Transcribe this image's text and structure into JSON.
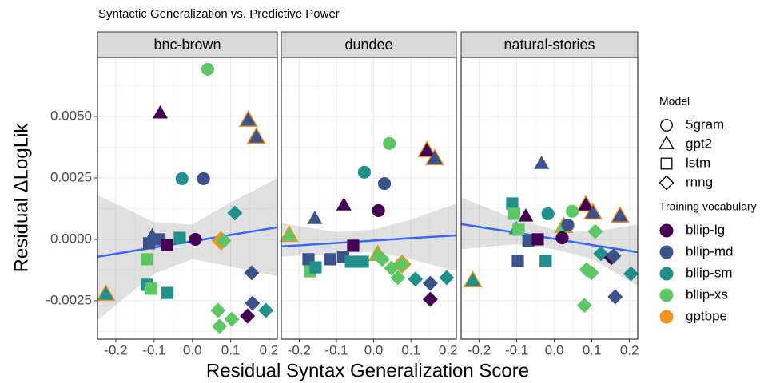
{
  "chart_data": {
    "type": "scatter",
    "title": "Syntactic Generalization vs. Predictive Power",
    "xlabel": "Residual Syntax Generalization Score",
    "ylabel": "Residual ΔLogLik",
    "xlim": [
      -0.248,
      0.222
    ],
    "ylim": [
      -0.00406,
      0.0074
    ],
    "xticks": [
      -0.2,
      -0.1,
      {
        "value": 0,
        "label": "0.0"
      },
      0.1,
      0.2
    ],
    "yticks": [
      {
        "value": -0.0025,
        "label": "-0.0025"
      },
      {
        "value": 0,
        "label": "0.0000"
      },
      {
        "value": 0.0025,
        "label": "0.0025"
      },
      {
        "value": 0.005,
        "label": "0.0050"
      }
    ],
    "grid": true,
    "trend_color": "#3366ff",
    "band_color": "#999999",
    "legends": {
      "shape": {
        "title": "Model",
        "items": [
          {
            "name": "5gram",
            "shape": "circle"
          },
          {
            "name": "gpt2",
            "shape": "triangle"
          },
          {
            "name": "lstm",
            "shape": "square"
          },
          {
            "name": "rnng",
            "shape": "diamond"
          }
        ]
      },
      "color": {
        "title": "Training vocabulary",
        "items": [
          {
            "name": "bllip-lg",
            "color": "#440154"
          },
          {
            "name": "bllip-md",
            "color": "#3b528b"
          },
          {
            "name": "bllip-sm",
            "color": "#21908c"
          },
          {
            "name": "bllip-xs",
            "color": "#5dc863"
          },
          {
            "name": "gptbpe",
            "color": "#f0921d"
          }
        ]
      }
    },
    "facets": [
      {
        "name": "bnc-brown",
        "trend": {
          "x": [
            -0.248,
            -0.1,
            0,
            0.1,
            0.222
          ],
          "y": [
            -0.00071,
            -0.00033,
            -8e-05,
            0.00018,
            0.00049
          ],
          "lower": [
            -0.0033,
            -0.0014,
            -0.0008,
            -0.0011,
            -0.0015
          ],
          "upper": [
            0.0018,
            0.0007,
            0.0006,
            0.0015,
            0.0025
          ]
        },
        "points": [
          {
            "x": -0.226,
            "y": -0.00227,
            "model": "gpt2",
            "vocab": "gptbpe"
          },
          {
            "x": 0.146,
            "y": 0.00481,
            "model": "gpt2",
            "vocab": "gptbpe"
          },
          {
            "x": 0.167,
            "y": 0.00412,
            "model": "gpt2",
            "vocab": "gptbpe"
          },
          {
            "x": 0.075,
            "y": -6e-05,
            "model": "rnng",
            "vocab": "gptbpe"
          },
          {
            "x": -0.226,
            "y": -0.00227,
            "model": "gpt2",
            "vocab": "bllip-sm"
          },
          {
            "x": 0.146,
            "y": 0.00481,
            "model": "gpt2",
            "vocab": "bllip-md"
          },
          {
            "x": 0.167,
            "y": 0.00412,
            "model": "gpt2",
            "vocab": "bllip-md"
          },
          {
            "x": -0.084,
            "y": 0.0051,
            "model": "gpt2",
            "vocab": "bllip-lg"
          },
          {
            "x": 0.04,
            "y": 0.00692,
            "model": "5gram",
            "vocab": "bllip-xs"
          },
          {
            "x": -0.027,
            "y": 0.00247,
            "model": "5gram",
            "vocab": "bllip-sm"
          },
          {
            "x": 0.029,
            "y": 0.00247,
            "model": "5gram",
            "vocab": "bllip-md"
          },
          {
            "x": 0.008,
            "y": 0,
            "model": "5gram",
            "vocab": "bllip-lg"
          },
          {
            "x": -0.105,
            "y": 0.0001,
            "model": "gpt2",
            "vocab": "bllip-md"
          },
          {
            "x": -0.113,
            "y": -0.00016,
            "model": "lstm",
            "vocab": "bllip-md"
          },
          {
            "x": -0.086,
            "y": 0,
            "model": "lstm",
            "vocab": "bllip-md"
          },
          {
            "x": -0.067,
            "y": -0.00023,
            "model": "lstm",
            "vocab": "bllip-lg"
          },
          {
            "x": -0.033,
            "y": 6e-05,
            "model": "lstm",
            "vocab": "bllip-sm"
          },
          {
            "x": -0.119,
            "y": -0.00081,
            "model": "lstm",
            "vocab": "bllip-xs"
          },
          {
            "x": -0.119,
            "y": -0.00185,
            "model": "lstm",
            "vocab": "bllip-sm"
          },
          {
            "x": -0.107,
            "y": -0.00201,
            "model": "lstm",
            "vocab": "bllip-xs"
          },
          {
            "x": -0.065,
            "y": -0.00218,
            "model": "lstm",
            "vocab": "bllip-sm"
          },
          {
            "x": 0.111,
            "y": 0.00107,
            "model": "rnng",
            "vocab": "bllip-sm"
          },
          {
            "x": 0.082,
            "y": -6e-05,
            "model": "rnng",
            "vocab": "bllip-xs"
          },
          {
            "x": 0.067,
            "y": -0.00289,
            "model": "rnng",
            "vocab": "bllip-xs"
          },
          {
            "x": 0.071,
            "y": -0.00354,
            "model": "rnng",
            "vocab": "bllip-xs"
          },
          {
            "x": 0.103,
            "y": -0.00325,
            "model": "rnng",
            "vocab": "bllip-xs"
          },
          {
            "x": 0.144,
            "y": -0.00312,
            "model": "rnng",
            "vocab": "bllip-lg"
          },
          {
            "x": 0.155,
            "y": -0.00136,
            "model": "rnng",
            "vocab": "bllip-md"
          },
          {
            "x": 0.157,
            "y": -0.0026,
            "model": "rnng",
            "vocab": "bllip-md"
          },
          {
            "x": 0.192,
            "y": -0.00289,
            "model": "rnng",
            "vocab": "bllip-sm"
          }
        ]
      },
      {
        "name": "dundee",
        "trend": {
          "x": [
            -0.248,
            -0.1,
            0,
            0.1,
            0.222
          ],
          "y": [
            -0.00029,
            -0.00015,
            -5e-05,
            5e-05,
            0.00016
          ],
          "lower": [
            -0.0007,
            -0.0006,
            -0.0005,
            -0.0008,
            -0.0013
          ],
          "upper": [
            0.00065,
            0.0003,
            0.0004,
            0.0008,
            0.00146
          ]
        },
        "points": [
          {
            "x": -0.227,
            "y": 0.00013,
            "model": "gpt2",
            "vocab": "gptbpe"
          },
          {
            "x": 0.143,
            "y": 0.00357,
            "model": "gpt2",
            "vocab": "gptbpe"
          },
          {
            "x": 0.164,
            "y": 0.00325,
            "model": "gpt2",
            "vocab": "gptbpe"
          },
          {
            "x": 0.011,
            "y": -0.00065,
            "model": "gpt2",
            "vocab": "gptbpe"
          },
          {
            "x": 0.076,
            "y": -0.00101,
            "model": "rnng",
            "vocab": "gptbpe"
          },
          {
            "x": -0.227,
            "y": 0.00013,
            "model": "gpt2",
            "vocab": "bllip-xs"
          },
          {
            "x": 0.143,
            "y": 0.00357,
            "model": "gpt2",
            "vocab": "bllip-lg"
          },
          {
            "x": 0.164,
            "y": 0.00325,
            "model": "gpt2",
            "vocab": "bllip-md"
          },
          {
            "x": 0.011,
            "y": -0.00065,
            "model": "gpt2",
            "vocab": "bllip-xs"
          },
          {
            "x": 0.076,
            "y": -0.00101,
            "model": "rnng",
            "vocab": "bllip-xs"
          },
          {
            "x": 0.042,
            "y": 0.0039,
            "model": "5gram",
            "vocab": "bllip-xs"
          },
          {
            "x": -0.025,
            "y": 0.00273,
            "model": "5gram",
            "vocab": "bllip-sm"
          },
          {
            "x": 0.029,
            "y": 0.00227,
            "model": "5gram",
            "vocab": "bllip-md"
          },
          {
            "x": 0.013,
            "y": 0.00117,
            "model": "5gram",
            "vocab": "bllip-lg"
          },
          {
            "x": -0.08,
            "y": 0.00136,
            "model": "gpt2",
            "vocab": "bllip-lg"
          },
          {
            "x": -0.158,
            "y": 0.00081,
            "model": "gpt2",
            "vocab": "bllip-md"
          },
          {
            "x": -0.055,
            "y": -0.00026,
            "model": "lstm",
            "vocab": "bllip-lg"
          },
          {
            "x": -0.118,
            "y": -0.00081,
            "model": "lstm",
            "vocab": "bllip-md"
          },
          {
            "x": -0.082,
            "y": -0.00071,
            "model": "lstm",
            "vocab": "bllip-md"
          },
          {
            "x": -0.061,
            "y": -0.00091,
            "model": "lstm",
            "vocab": "bllip-sm"
          },
          {
            "x": -0.029,
            "y": -0.00091,
            "model": "lstm",
            "vocab": "bllip-sm"
          },
          {
            "x": -0.175,
            "y": -0.00081,
            "model": "lstm",
            "vocab": "bllip-md"
          },
          {
            "x": -0.171,
            "y": -0.0013,
            "model": "lstm",
            "vocab": "bllip-xs"
          },
          {
            "x": -0.156,
            "y": -0.00114,
            "model": "lstm",
            "vocab": "bllip-sm"
          },
          {
            "x": 0.023,
            "y": -0.00081,
            "model": "rnng",
            "vocab": "bllip-xs"
          },
          {
            "x": 0.048,
            "y": -0.00117,
            "model": "rnng",
            "vocab": "bllip-xs"
          },
          {
            "x": 0.065,
            "y": -0.00156,
            "model": "rnng",
            "vocab": "bllip-xs"
          },
          {
            "x": 0.112,
            "y": -0.00162,
            "model": "rnng",
            "vocab": "bllip-sm"
          },
          {
            "x": 0.152,
            "y": -0.00179,
            "model": "rnng",
            "vocab": "bllip-md"
          },
          {
            "x": 0.152,
            "y": -0.00244,
            "model": "rnng",
            "vocab": "bllip-lg"
          },
          {
            "x": 0.196,
            "y": -0.00156,
            "model": "rnng",
            "vocab": "bllip-sm"
          }
        ]
      },
      {
        "name": "natural-stories",
        "trend": {
          "x": [
            -0.248,
            -0.1,
            0,
            0.1,
            0.222
          ],
          "y": [
            0.00062,
            0.00027,
            2e-05,
            -0.00023,
            -0.00052
          ],
          "lower": [
            -0.0004,
            -0.0002,
            -0.0004,
            -0.0008,
            -0.0019
          ],
          "upper": [
            0.0017,
            0.0008,
            0.0004,
            0.0003,
            0.0006
          ]
        },
        "points": [
          {
            "x": -0.217,
            "y": -0.00172,
            "model": "gpt2",
            "vocab": "gptbpe"
          },
          {
            "x": 0.084,
            "y": 0.00136,
            "model": "gpt2",
            "vocab": "gptbpe"
          },
          {
            "x": 0.103,
            "y": 0.00104,
            "model": "gpt2",
            "vocab": "gptbpe"
          },
          {
            "x": 0.175,
            "y": 0.00091,
            "model": "gpt2",
            "vocab": "gptbpe"
          },
          {
            "x": 0.025,
            "y": 0.00049,
            "model": "gpt2",
            "vocab": "gptbpe"
          },
          {
            "x": -0.217,
            "y": -0.00172,
            "model": "gpt2",
            "vocab": "bllip-sm"
          },
          {
            "x": 0.084,
            "y": 0.00136,
            "model": "gpt2",
            "vocab": "bllip-lg"
          },
          {
            "x": 0.103,
            "y": 0.00104,
            "model": "gpt2",
            "vocab": "bllip-md"
          },
          {
            "x": 0.175,
            "y": 0.00091,
            "model": "gpt2",
            "vocab": "bllip-md"
          },
          {
            "x": 0.025,
            "y": 0.00049,
            "model": "gpt2",
            "vocab": "bllip-xs"
          },
          {
            "x": -0.034,
            "y": 0.00305,
            "model": "gpt2",
            "vocab": "bllip-md"
          },
          {
            "x": -0.076,
            "y": 0.00091,
            "model": "gpt2",
            "vocab": "bllip-lg"
          },
          {
            "x": -0.101,
            "y": 0.00039,
            "model": "gpt2",
            "vocab": "bllip-sm"
          },
          {
            "x": 0.048,
            "y": 0.00114,
            "model": "5gram",
            "vocab": "bllip-xs"
          },
          {
            "x": -0.017,
            "y": 0.00104,
            "model": "5gram",
            "vocab": "bllip-sm"
          },
          {
            "x": 0.036,
            "y": 0.00058,
            "model": "5gram",
            "vocab": "bllip-md"
          },
          {
            "x": 0.021,
            "y": 6e-05,
            "model": "5gram",
            "vocab": "bllip-lg"
          },
          {
            "x": -0.112,
            "y": 0.00146,
            "model": "lstm",
            "vocab": "bllip-sm"
          },
          {
            "x": -0.107,
            "y": 0.00104,
            "model": "lstm",
            "vocab": "bllip-xs"
          },
          {
            "x": -0.095,
            "y": 0.00039,
            "model": "lstm",
            "vocab": "bllip-xs"
          },
          {
            "x": -0.069,
            "y": -6e-05,
            "model": "lstm",
            "vocab": "bllip-md"
          },
          {
            "x": -0.044,
            "y": 0,
            "model": "lstm",
            "vocab": "bllip-lg"
          },
          {
            "x": -0.097,
            "y": -0.00088,
            "model": "lstm",
            "vocab": "bllip-md"
          },
          {
            "x": -0.023,
            "y": -0.00088,
            "model": "lstm",
            "vocab": "bllip-sm"
          },
          {
            "x": 0.109,
            "y": 0.00032,
            "model": "rnng",
            "vocab": "bllip-xs"
          },
          {
            "x": 0.124,
            "y": -0.00058,
            "model": "rnng",
            "vocab": "bllip-sm"
          },
          {
            "x": 0.086,
            "y": -0.00123,
            "model": "rnng",
            "vocab": "bllip-xs"
          },
          {
            "x": 0.099,
            "y": -0.00136,
            "model": "rnng",
            "vocab": "bllip-xs"
          },
          {
            "x": 0.08,
            "y": -0.00269,
            "model": "rnng",
            "vocab": "bllip-xs"
          },
          {
            "x": 0.152,
            "y": -0.00075,
            "model": "rnng",
            "vocab": "bllip-lg"
          },
          {
            "x": 0.158,
            "y": -0.00068,
            "model": "rnng",
            "vocab": "bllip-md"
          },
          {
            "x": 0.162,
            "y": -0.00234,
            "model": "rnng",
            "vocab": "bllip-md"
          },
          {
            "x": 0.204,
            "y": -0.0014,
            "model": "rnng",
            "vocab": "bllip-sm"
          }
        ]
      }
    ]
  }
}
